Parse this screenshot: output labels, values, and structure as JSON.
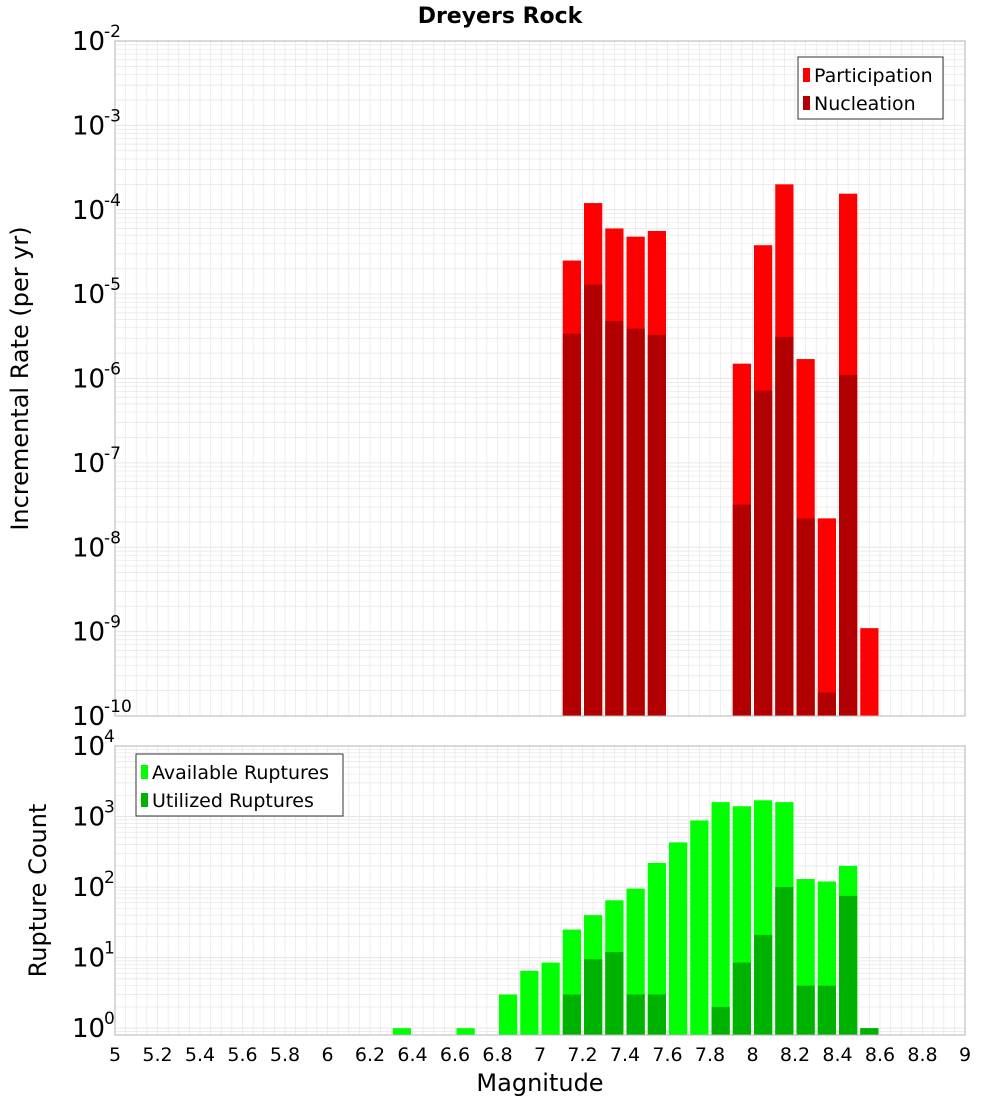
{
  "title": "Dreyers Rock",
  "colors": {
    "participation": "#ff0000",
    "nucleation": "#b20000",
    "available": "#00ff00",
    "utilized": "#00b200",
    "grid": "#e6e6e6",
    "frame": "#b4b4b4"
  },
  "x_axis": {
    "label": "Magnitude",
    "range": [
      5,
      9
    ],
    "ticks": [
      "5",
      "5.2",
      "5.4",
      "5.6",
      "5.8",
      "6",
      "6.2",
      "6.4",
      "6.6",
      "6.8",
      "7",
      "7.2",
      "7.4",
      "7.6",
      "7.8",
      "8",
      "8.2",
      "8.4",
      "8.6",
      "8.8",
      "9"
    ],
    "bin_width": 0.1
  },
  "chart_data": [
    {
      "type": "bar",
      "title": "Dreyers Rock",
      "xlabel": "",
      "ylabel": "Incremental Rate (per yr)",
      "yscale": "log",
      "ylim": [
        1e-10,
        0.01
      ],
      "ytick_exponents": [
        "-10",
        "-9",
        "-8",
        "-7",
        "-6",
        "-5",
        "-4",
        "-3",
        "-2"
      ],
      "ytick_base": "10",
      "grid": true,
      "legend_position": "top-right",
      "x": [
        7.15,
        7.25,
        7.35,
        7.45,
        7.55,
        7.95,
        8.05,
        8.15,
        8.25,
        8.35,
        8.45,
        8.55
      ],
      "series": [
        {
          "name": "Participation",
          "color_key": "participation",
          "values": [
            2.5e-05,
            0.00012,
            6e-05,
            4.8e-05,
            5.6e-05,
            1.5e-06,
            3.8e-05,
            0.0002,
            1.7e-06,
            2.2e-08,
            0.000155,
            1.1e-09
          ]
        },
        {
          "name": "Nucleation",
          "color_key": "nucleation",
          "values": [
            3.4e-06,
            1.3e-05,
            4.8e-06,
            3.9e-06,
            3.3e-06,
            3.2e-08,
            7.2e-07,
            3.1e-06,
            2.2e-08,
            1.9e-10,
            1.1e-06,
            null
          ]
        }
      ]
    },
    {
      "type": "bar",
      "title": "",
      "xlabel": "Magnitude",
      "ylabel": "Rupture Count",
      "yscale": "log",
      "ylim": [
        0.8,
        10000
      ],
      "ytick_exponents": [
        "0",
        "1",
        "2",
        "3",
        "4"
      ],
      "ytick_base": "10",
      "grid": true,
      "legend_position": "top-left",
      "x": [
        6.35,
        6.65,
        6.85,
        6.95,
        7.05,
        7.15,
        7.25,
        7.35,
        7.45,
        7.55,
        7.65,
        7.75,
        7.85,
        7.95,
        8.05,
        8.15,
        8.25,
        8.35,
        8.45,
        8.55
      ],
      "series": [
        {
          "name": "Available Ruptures",
          "color_key": "available",
          "values": [
            1,
            1,
            3,
            6.5,
            8.5,
            25,
            40,
            65,
            95,
            220,
            430,
            880,
            1600,
            1400,
            1700,
            1600,
            130,
            120,
            200,
            1
          ]
        },
        {
          "name": "Utilized Ruptures",
          "color_key": "utilized",
          "values": [
            null,
            null,
            null,
            null,
            null,
            3,
            9.5,
            12,
            3,
            3,
            null,
            null,
            2,
            8.5,
            21,
            100,
            4,
            4,
            75,
            1
          ]
        }
      ]
    }
  ]
}
